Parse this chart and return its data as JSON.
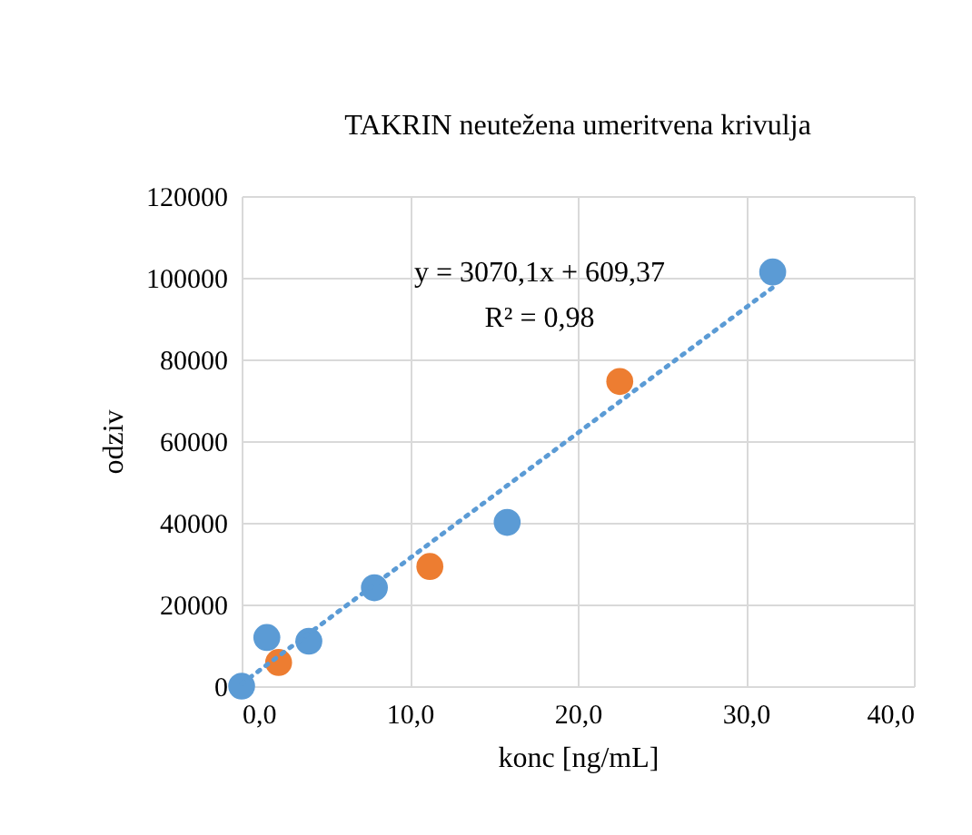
{
  "chart_data": {
    "type": "scatter",
    "title": "TAKRIN neutežena umeritvena krivulja",
    "xlabel": "konc [ng/mL]",
    "ylabel": "odziv",
    "xlim": [
      0,
      40
    ],
    "xticks": [
      {
        "value": 0,
        "label": "0,0"
      },
      {
        "value": 10,
        "label": "10,0"
      },
      {
        "value": 20,
        "label": "20,0"
      },
      {
        "value": 30,
        "label": "30,0"
      },
      {
        "value": 40,
        "label": "40,0"
      }
    ],
    "ylim": [
      0,
      120000
    ],
    "yticks": [
      0,
      20000,
      40000,
      60000,
      80000,
      100000,
      120000
    ],
    "grid": true,
    "marker": "circle",
    "series": [
      {
        "color": "#5b9bd5",
        "x": [
          0,
          1.5,
          4.0,
          7.9,
          15.8,
          31.6
        ],
        "values": [
          0,
          11900,
          11000,
          24100,
          40100,
          101400
        ]
      },
      {
        "color": "#ed7d31",
        "x": [
          2.2,
          11.2,
          22.5
        ],
        "values": [
          5800,
          29300,
          74600
        ]
      },
      {
        "type": "line",
        "marker": "none",
        "line_style": "dotted",
        "color": "#5b9bd5",
        "x": [
          0,
          31.6
        ],
        "values": [
          600,
          97600
        ]
      }
    ],
    "annotations": [
      "y = 3070,1x + 609,37",
      "R² = 0,98"
    ]
  }
}
